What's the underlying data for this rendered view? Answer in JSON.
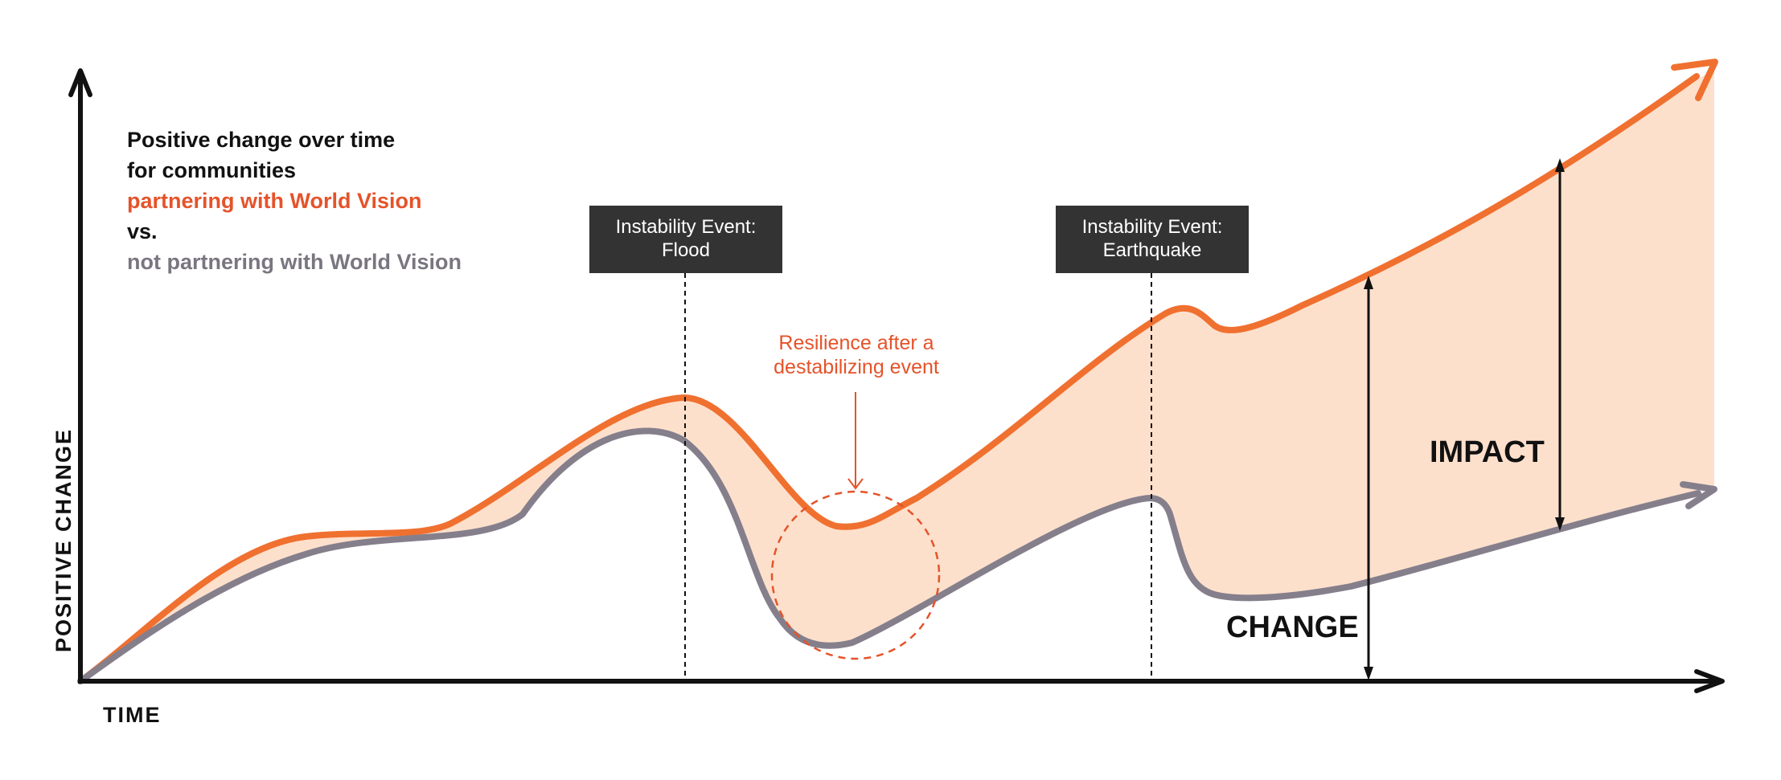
{
  "legend": {
    "line1": "Positive change over time",
    "line2": "for communities",
    "line3": "partnering with World Vision",
    "line4": "vs.",
    "line5": "not partnering with World Vision"
  },
  "events": [
    {
      "line1": "Instability Event:",
      "line2": "Flood"
    },
    {
      "line1": "Instability Event:",
      "line2": "Earthquake"
    }
  ],
  "annotation": {
    "line1": "Resilience after a",
    "line2": "destabilizing event"
  },
  "labels": {
    "impact": "IMPACT",
    "change": "CHANGE"
  },
  "axes": {
    "x": "TIME",
    "y": "POSITIVE CHANGE"
  },
  "colors": {
    "partnering": "#f07030",
    "not_partnering": "#857f8c",
    "fill": "#fde0cc",
    "annotation": "#e5532a",
    "event_box": "#333333",
    "axis": "#111111"
  }
}
